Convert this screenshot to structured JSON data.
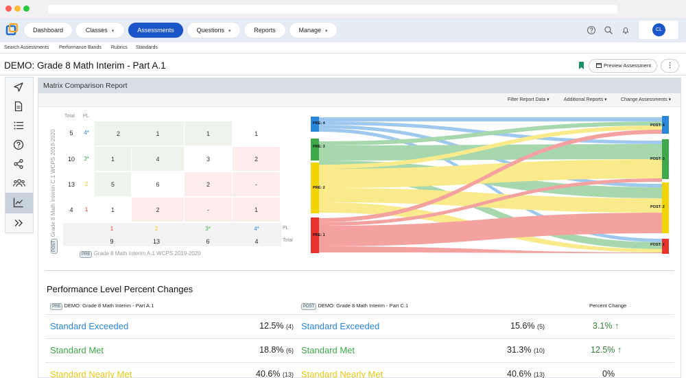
{
  "browser": {
    "dots": [
      "#ff5f57",
      "#febc2e",
      "#28c840"
    ]
  },
  "nav": {
    "items": [
      {
        "label": "Dashboard",
        "caret": ""
      },
      {
        "label": "Classes",
        "caret": "▾"
      },
      {
        "label": "Assessments",
        "caret": ""
      },
      {
        "label": "Questions",
        "caret": "▾"
      },
      {
        "label": "Reports",
        "caret": ""
      },
      {
        "label": "Manage",
        "caret": "▾"
      }
    ],
    "user_initials": "CL"
  },
  "subnav": {
    "items": [
      "Search Assessments",
      "Performance Bands",
      "Rubrics",
      "Standards"
    ]
  },
  "page": {
    "title": "DEMO: Grade 8 Math Interim - Part A.1",
    "preview_label": "Preview Assessment",
    "more_label": "⋮"
  },
  "report": {
    "title": "Matrix Comparison Report",
    "toolbar": [
      "Filter Report Data ▾",
      "Additional Reports ▾",
      "Change Assessments ▾"
    ]
  },
  "matrix": {
    "post_badge": "POST",
    "post_label": "Grade 8 Math Interim C.1 WCPS 2019-2020",
    "pre_badge": "PRE",
    "pre_label": "Grade 8 Math Interim A.1 WCPS 2019-2020",
    "head_total": "Total",
    "head_pl": "PL",
    "row_totals": [
      "5",
      "10",
      "13",
      "4"
    ],
    "row_pls": [
      "4*",
      "3*",
      "2",
      "1"
    ],
    "cells": [
      [
        "2",
        "1",
        "1",
        "1"
      ],
      [
        "1",
        "4",
        "3",
        "2"
      ],
      [
        "5",
        "6",
        "2",
        "-"
      ],
      [
        "1",
        "2",
        "-",
        "1"
      ]
    ],
    "col_pls": [
      "1",
      "2",
      "3*",
      "4*"
    ],
    "col_totals": [
      "9",
      "13",
      "6",
      "4"
    ],
    "foot_pl": "PL",
    "foot_total": "Total"
  },
  "sankey": {
    "pre_labels": [
      "PRE: 4",
      "PRE: 3",
      "PRE: 2",
      "PRE: 1"
    ],
    "post_labels": [
      "POST: 4",
      "POST: 3",
      "POST: 2",
      "POST: 1"
    ]
  },
  "percent": {
    "title": "Performance Level Percent Changes",
    "pre_badge": "PRE",
    "pre_name": "DEMO: Grade 8 Math Interim - Part A.1",
    "post_badge": "POST",
    "post_name": "DEMO: Grade 8 Math Interim - Part C.1",
    "change_head": "Percent Change",
    "rows": [
      {
        "label": "Standard Exceeded",
        "color": "#2a86d8",
        "pre": "12.5%",
        "pre_n": "(4)",
        "post": "15.6%",
        "post_n": "(5)",
        "change": "3.1% ↑",
        "change_color": "#2e7d32"
      },
      {
        "label": "Standard Met",
        "color": "#3ea84a",
        "pre": "18.8%",
        "pre_n": "(6)",
        "post": "31.3%",
        "post_n": "(10)",
        "change": "12.5% ↑",
        "change_color": "#2e7d32"
      },
      {
        "label": "Standard Nearly Met",
        "color": "#e8c81a",
        "pre": "40.6%",
        "pre_n": "(13)",
        "post": "40.6%",
        "post_n": "(13)",
        "change": "0%",
        "change_color": "#222222"
      }
    ]
  },
  "colors": {
    "pl4": "#2a86d8",
    "pl3": "#3ea84a",
    "pl2": "#f2d500",
    "pl1": "#e8322e",
    "accent": "#1a56c7"
  }
}
